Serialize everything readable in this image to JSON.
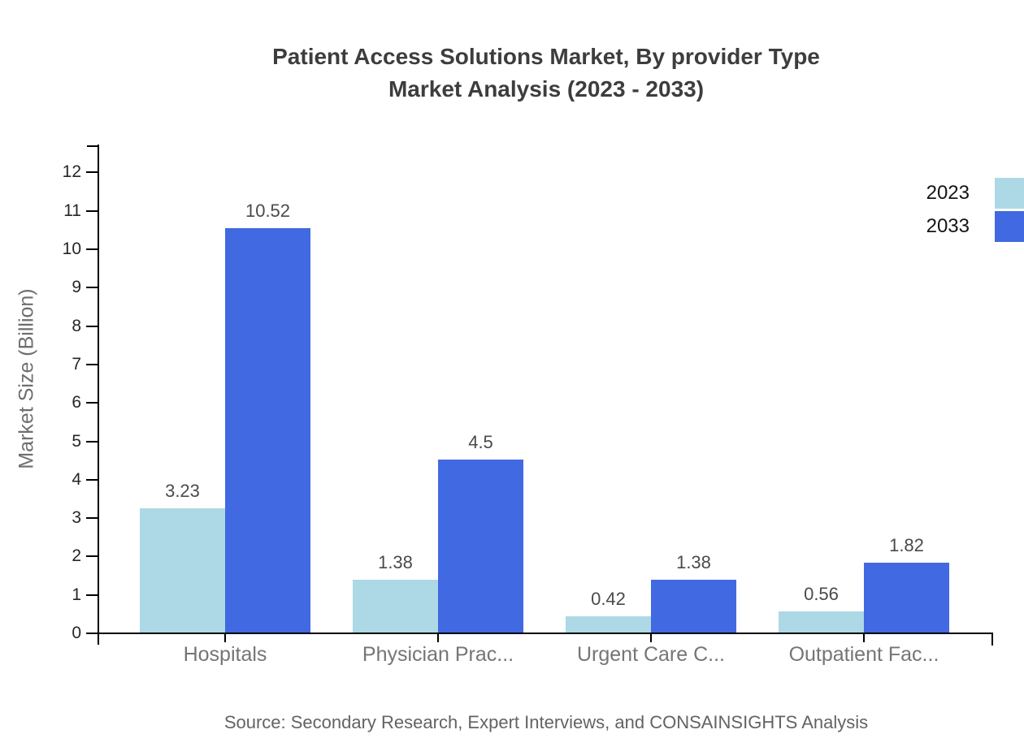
{
  "title": {
    "line1": "Patient Access Solutions Market, By provider Type",
    "line2": "Market Analysis (2023 - 2033)"
  },
  "source": "Source: Secondary Research, Expert Interviews, and CONSAINSIGHTS Analysis",
  "colors": {
    "series_2023": "#ADD8E6",
    "series_2033": "#4169E1",
    "axis": "#000000",
    "title_text": "#3d3d3d",
    "category_text": "#757575",
    "value_text": "#4a4a4a"
  },
  "chart_data": {
    "type": "bar",
    "categories": [
      "Hospitals",
      "Physician Prac...",
      "Urgent Care C...",
      "Outpatient Fac..."
    ],
    "series": [
      {
        "name": "2023",
        "color": "#ADD8E6",
        "values": [
          3.23,
          1.38,
          0.42,
          0.56
        ]
      },
      {
        "name": "2033",
        "color": "#4169E1",
        "values": [
          10.52,
          4.5,
          1.38,
          1.82
        ]
      }
    ],
    "title": "Patient Access Solutions Market, By provider Type Market Analysis (2023 - 2033)",
    "xlabel": "",
    "ylabel": "Market Size (Billion)",
    "ylim": [
      0,
      12
    ],
    "ytick_step": 1,
    "grid": false,
    "legend_position": "top-right",
    "value_labels": true
  }
}
